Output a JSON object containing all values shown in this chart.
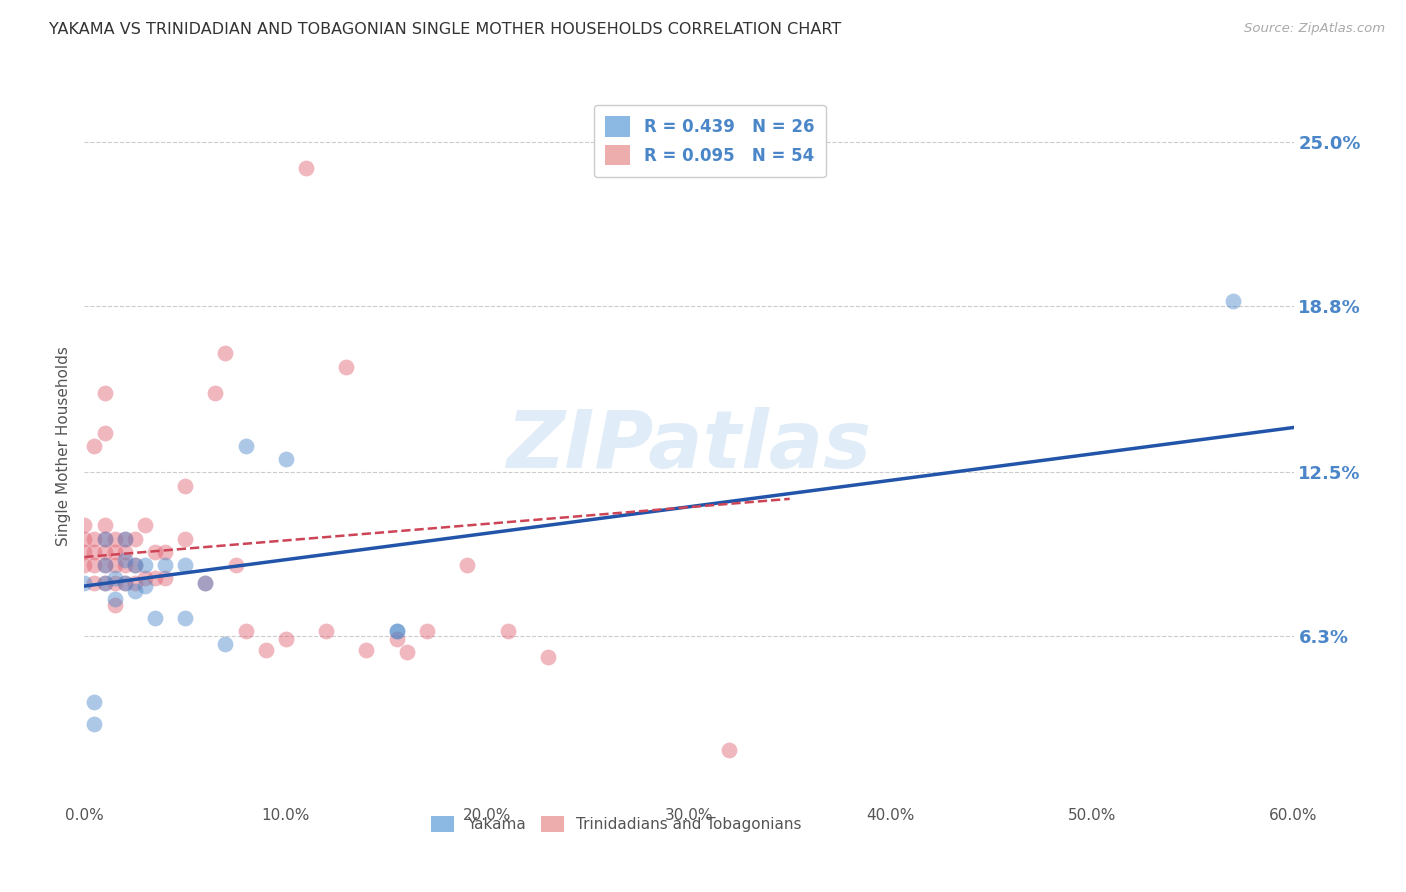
{
  "title": "YAKAMA VS TRINIDADIAN AND TOBAGONIAN SINGLE MOTHER HOUSEHOLDS CORRELATION CHART",
  "source": "Source: ZipAtlas.com",
  "ylabel": "Single Mother Households",
  "xlabel_ticks": [
    "0.0%",
    "10.0%",
    "20.0%",
    "30.0%",
    "40.0%",
    "50.0%",
    "60.0%"
  ],
  "xlabel_vals": [
    0.0,
    0.1,
    0.2,
    0.3,
    0.4,
    0.5,
    0.6
  ],
  "ylabel_ticks": [
    "6.3%",
    "12.5%",
    "18.8%",
    "25.0%"
  ],
  "ylabel_vals": [
    0.063,
    0.125,
    0.188,
    0.25
  ],
  "xlim": [
    0.0,
    0.6
  ],
  "ylim": [
    0.0,
    0.27
  ],
  "legend1_label": "R = 0.439   N = 26",
  "legend2_label": "R = 0.095   N = 54",
  "legend1_color": "#6fa8dc",
  "legend2_color": "#ea9999",
  "watermark": "ZIPatlas",
  "blue_color": "#4a86c8",
  "pink_color": "#e06070",
  "blue_line_color": "#2255aa",
  "pink_line_color": "#cc4455",
  "yakama_x": [
    0.0,
    0.005,
    0.005,
    0.01,
    0.01,
    0.01,
    0.015,
    0.015,
    0.02,
    0.02,
    0.02,
    0.025,
    0.025,
    0.03,
    0.03,
    0.035,
    0.04,
    0.05,
    0.05,
    0.06,
    0.07,
    0.08,
    0.1,
    0.155,
    0.155,
    0.57
  ],
  "yakama_y": [
    0.083,
    0.03,
    0.038,
    0.09,
    0.1,
    0.083,
    0.085,
    0.077,
    0.092,
    0.1,
    0.083,
    0.09,
    0.08,
    0.09,
    0.082,
    0.07,
    0.09,
    0.09,
    0.07,
    0.083,
    0.06,
    0.135,
    0.13,
    0.065,
    0.065,
    0.19
  ],
  "trini_x": [
    0.0,
    0.0,
    0.0,
    0.0,
    0.005,
    0.005,
    0.005,
    0.005,
    0.005,
    0.01,
    0.01,
    0.01,
    0.01,
    0.01,
    0.01,
    0.01,
    0.015,
    0.015,
    0.015,
    0.015,
    0.015,
    0.02,
    0.02,
    0.02,
    0.02,
    0.025,
    0.025,
    0.025,
    0.03,
    0.03,
    0.035,
    0.035,
    0.04,
    0.04,
    0.05,
    0.05,
    0.06,
    0.065,
    0.07,
    0.075,
    0.08,
    0.09,
    0.1,
    0.11,
    0.12,
    0.13,
    0.14,
    0.155,
    0.16,
    0.17,
    0.19,
    0.21,
    0.23,
    0.32
  ],
  "trini_y": [
    0.09,
    0.095,
    0.1,
    0.105,
    0.083,
    0.09,
    0.095,
    0.1,
    0.135,
    0.083,
    0.09,
    0.095,
    0.1,
    0.105,
    0.14,
    0.155,
    0.075,
    0.083,
    0.09,
    0.095,
    0.1,
    0.083,
    0.09,
    0.095,
    0.1,
    0.083,
    0.09,
    0.1,
    0.085,
    0.105,
    0.085,
    0.095,
    0.085,
    0.095,
    0.1,
    0.12,
    0.083,
    0.155,
    0.17,
    0.09,
    0.065,
    0.058,
    0.062,
    0.24,
    0.065,
    0.165,
    0.058,
    0.062,
    0.057,
    0.065,
    0.09,
    0.065,
    0.055,
    0.02
  ],
  "bg_color": "#ffffff",
  "grid_color": "#cccccc",
  "title_color": "#333333",
  "axis_label_color": "#555555",
  "tick_color_right": "#4a86c8",
  "blue_line_x0": 0.0,
  "blue_line_x1": 0.6,
  "blue_line_y0": 0.082,
  "blue_line_y1": 0.142,
  "pink_line_x0": 0.0,
  "pink_line_x1": 0.35,
  "pink_line_y0": 0.093,
  "pink_line_y1": 0.115
}
